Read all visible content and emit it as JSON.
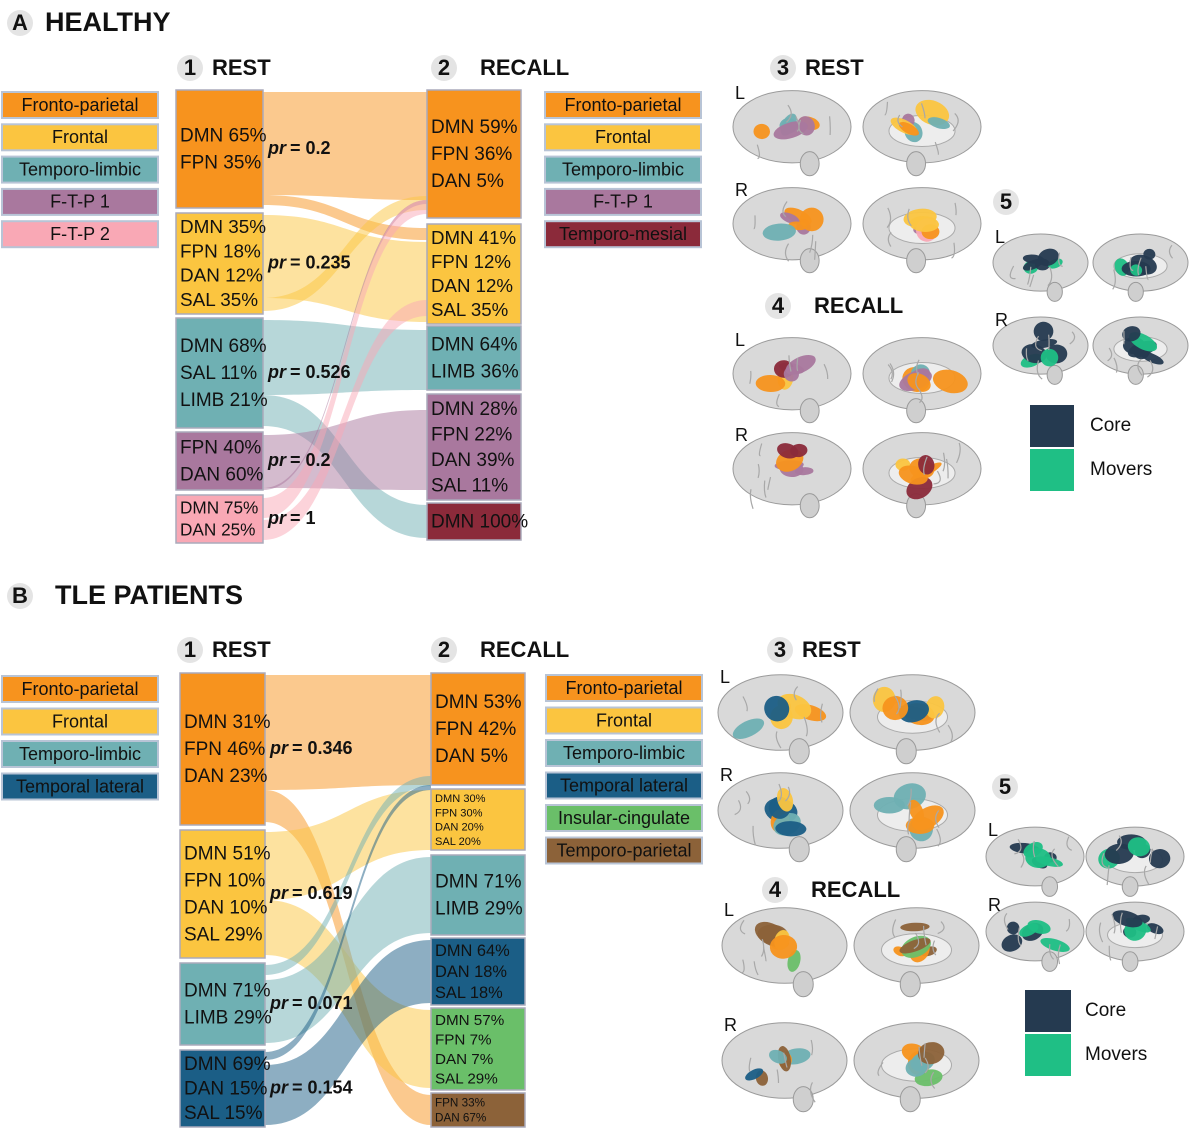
{
  "pr_symbol": "pr",
  "panels": [
    {
      "letter": "A",
      "title": "HEALTHY",
      "rest": {
        "number": "1",
        "title": "REST",
        "legend": [
          {
            "label": "Fronto-parietal",
            "color": "#f7931e"
          },
          {
            "label": "Frontal",
            "color": "#fbc540"
          },
          {
            "label": "Temporo-limbic",
            "color": "#6fb0b3"
          },
          {
            "label": "F-T-P 1",
            "color": "#a9789e"
          },
          {
            "label": "F-T-P 2",
            "color": "#f9a8b5"
          }
        ],
        "nodes": [
          {
            "lines": [
              "DMN 65%",
              "FPN 35%"
            ],
            "pr": "= 0.2",
            "color": "#f7931e"
          },
          {
            "lines": [
              "DMN 35%",
              "FPN 18%",
              "DAN 12%",
              "SAL 35%"
            ],
            "pr": "= 0.235",
            "color": "#fbc540"
          },
          {
            "lines": [
              "DMN 68%",
              "SAL 11%",
              "LIMB 21%"
            ],
            "pr": "= 0.526",
            "color": "#6fb0b3"
          },
          {
            "lines": [
              "FPN 40%",
              "DAN 60%"
            ],
            "pr": "= 0.2",
            "color": "#a9789e"
          },
          {
            "lines": [
              "DMN 75%",
              "DAN 25%"
            ],
            "pr": "= 1",
            "color": "#f9a8b5"
          }
        ]
      },
      "recall": {
        "number": "2",
        "title": "RECALL",
        "legend": [
          {
            "label": "Fronto-parietal",
            "color": "#f7931e"
          },
          {
            "label": "Frontal",
            "color": "#fbc540"
          },
          {
            "label": "Temporo-limbic",
            "color": "#6fb0b3"
          },
          {
            "label": "F-T-P 1",
            "color": "#a9789e"
          },
          {
            "label": "Temporo-mesial",
            "color": "#8b2a3a"
          }
        ],
        "nodes": [
          {
            "lines": [
              "DMN 59%",
              "FPN 36%",
              "DAN 5%"
            ],
            "color": "#f7931e"
          },
          {
            "lines": [
              "DMN 41%",
              "FPN 12%",
              "DAN 12%",
              "SAL 35%"
            ],
            "color": "#fbc540"
          },
          {
            "lines": [
              "DMN 64%",
              "LIMB 36%"
            ],
            "color": "#6fb0b3"
          },
          {
            "lines": [
              "DMN 28%",
              "FPN 22%",
              "DAN 39%",
              "SAL 11%"
            ],
            "color": "#a9789e"
          },
          {
            "lines": [
              "DMN 100%"
            ],
            "color": "#8b2a3a"
          }
        ]
      },
      "brain_rest": {
        "number": "3",
        "title": "REST",
        "hemispheres": [
          "L",
          "R"
        ]
      },
      "brain_recall": {
        "number": "4",
        "title": "RECALL",
        "hemispheres": [
          "L",
          "R"
        ]
      },
      "brain_core": {
        "number": "5",
        "hemispheres": [
          "L",
          "R"
        ],
        "legend": [
          {
            "label": "Core",
            "color": "#253a50"
          },
          {
            "label": "Movers",
            "color": "#1fbf85"
          }
        ]
      }
    },
    {
      "letter": "B",
      "title": "TLE PATIENTS",
      "rest": {
        "number": "1",
        "title": "REST",
        "legend": [
          {
            "label": "Fronto-parietal",
            "color": "#f7931e"
          },
          {
            "label": "Frontal",
            "color": "#fbc540"
          },
          {
            "label": "Temporo-limbic",
            "color": "#6fb0b3"
          },
          {
            "label": "Temporal lateral",
            "color": "#1b5e86"
          }
        ],
        "nodes": [
          {
            "lines": [
              "DMN 31%",
              "FPN 46%",
              "DAN 23%"
            ],
            "pr": "= 0.346",
            "color": "#f7931e"
          },
          {
            "lines": [
              "DMN 51%",
              "FPN 10%",
              "DAN 10%",
              "SAL 29%"
            ],
            "pr": "= 0.619",
            "color": "#fbc540"
          },
          {
            "lines": [
              "DMN 71%",
              "LIMB 29%"
            ],
            "pr": "= 0.071",
            "color": "#6fb0b3"
          },
          {
            "lines": [
              "DMN 69%",
              "DAN 15%",
              "SAL 15%"
            ],
            "pr": "= 0.154",
            "color": "#1b5e86"
          }
        ]
      },
      "recall": {
        "number": "2",
        "title": "RECALL",
        "legend": [
          {
            "label": "Fronto-parietal",
            "color": "#f7931e"
          },
          {
            "label": "Frontal",
            "color": "#fbc540"
          },
          {
            "label": "Temporo-limbic",
            "color": "#6fb0b3"
          },
          {
            "label": "Temporal lateral",
            "color": "#1b5e86"
          },
          {
            "label": "Insular-cingulate",
            "color": "#6abf69"
          },
          {
            "label": "Temporo-parietal",
            "color": "#8c6239"
          }
        ],
        "nodes": [
          {
            "lines": [
              "DMN 53%",
              "FPN 42%",
              "DAN 5%"
            ],
            "color": "#f7931e"
          },
          {
            "lines": [
              "DMN 30%",
              "FPN 30%",
              "DAN 20%",
              "SAL 20%"
            ],
            "color": "#fbc540"
          },
          {
            "lines": [
              "DMN 71%",
              "LIMB 29%"
            ],
            "color": "#6fb0b3"
          },
          {
            "lines": [
              "DMN 64%",
              "DAN 18%",
              "SAL 18%"
            ],
            "color": "#1b5e86"
          },
          {
            "lines": [
              "DMN 57%",
              "FPN 7%",
              "DAN 7%",
              "SAL 29%"
            ],
            "color": "#6abf69"
          },
          {
            "lines": [
              "FPN 33%",
              "DAN 67%"
            ],
            "color": "#8c6239"
          }
        ]
      },
      "brain_rest": {
        "number": "3",
        "title": "REST",
        "hemispheres": [
          "L",
          "R"
        ]
      },
      "brain_recall": {
        "number": "4",
        "title": "RECALL",
        "hemispheres": [
          "L",
          "R"
        ]
      },
      "brain_core": {
        "number": "5",
        "hemispheres": [
          "L",
          "R"
        ],
        "legend": [
          {
            "label": "Core",
            "color": "#253a50"
          },
          {
            "label": "Movers",
            "color": "#1fbf85"
          }
        ]
      }
    }
  ]
}
